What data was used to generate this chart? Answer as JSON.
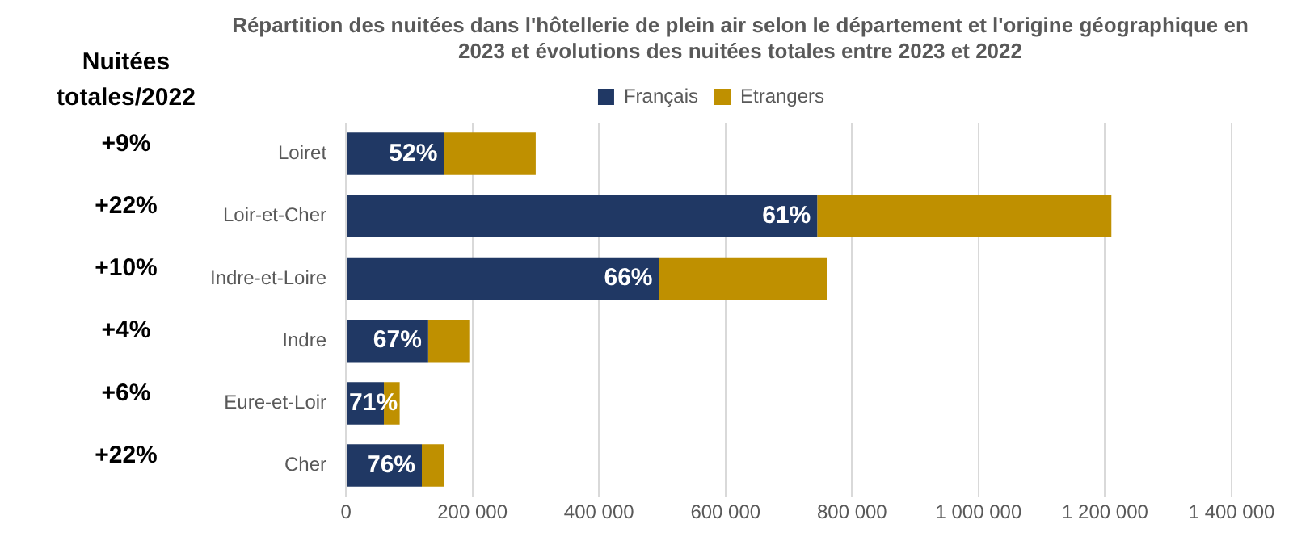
{
  "chart_data": {
    "type": "bar",
    "orientation": "horizontal",
    "stacked": true,
    "title": "Répartition des nuitées dans l'hôtellerie de plein air selon le département et l'origine géographique en 2023 et évolutions des nuitées totales entre 2023 et 2022",
    "categories": [
      "Loiret",
      "Loir-et-Cher",
      "Indre-et-Loire",
      "Indre",
      "Eure-et-Loir",
      "Cher"
    ],
    "series": [
      {
        "name": "Français",
        "color": "#203864",
        "values": [
          155000,
          745000,
          495000,
          130000,
          60000,
          120000
        ]
      },
      {
        "name": "Etrangers",
        "color": "#bf9000",
        "values": [
          145000,
          465000,
          265000,
          65000,
          25000,
          35000
        ]
      }
    ],
    "xlim": [
      0,
      1400000
    ],
    "xticks": [
      {
        "value": 0,
        "label": "0"
      },
      {
        "value": 200000,
        "label": "200 000"
      },
      {
        "value": 400000,
        "label": "400 000"
      },
      {
        "value": 600000,
        "label": "600 000"
      },
      {
        "value": 800000,
        "label": "800 000"
      },
      {
        "value": 1000000,
        "label": "1 000 000"
      },
      {
        "value": 1200000,
        "label": "1 200 000"
      },
      {
        "value": 1400000,
        "label": "1 400 000"
      }
    ],
    "grid": "x",
    "legend": "top",
    "annotations": [
      "Nuitées totales/2022",
      "+9%",
      "+22%",
      "+10%",
      "+4%",
      "+6%",
      "+22%",
      {
        "text": "52%",
        "x": 155000,
        "y": "Loiret"
      },
      {
        "text": "61%",
        "x": 745000,
        "y": "Loir-et-Cher"
      },
      {
        "text": "66%",
        "x": 495000,
        "y": "Indre-et-Loire"
      },
      {
        "text": "67%",
        "x": 130000,
        "y": "Indre"
      },
      {
        "text": "71%",
        "x": 60000,
        "y": "Eure-et-Loir"
      },
      {
        "text": "76%",
        "x": 120000,
        "y": "Cher"
      }
    ]
  }
}
